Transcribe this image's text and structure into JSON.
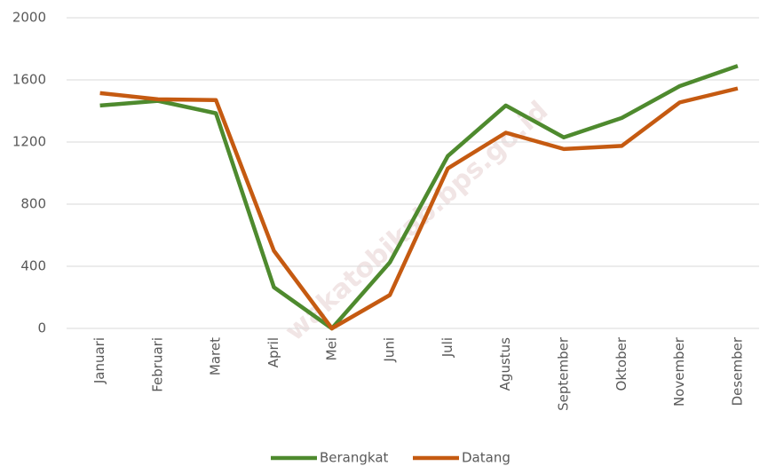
{
  "chart_data": {
    "type": "line",
    "categories": [
      "Januari",
      "Februari",
      "Maret",
      "April",
      "Mei",
      "Juni",
      "Juli",
      "Agustus",
      "September",
      "Oktober",
      "November",
      "Desember"
    ],
    "series": [
      {
        "name": "Berangkat",
        "color": "#4e8a2e",
        "values": [
          1435,
          1465,
          1385,
          265,
          0,
          425,
          1110,
          1435,
          1230,
          1355,
          1560,
          1690
        ]
      },
      {
        "name": "Datang",
        "color": "#c55a11",
        "values": [
          1515,
          1475,
          1470,
          500,
          0,
          215,
          1030,
          1260,
          1155,
          1175,
          1455,
          1545
        ]
      }
    ],
    "ylim": [
      0,
      2000
    ],
    "yticks": [
      0,
      400,
      800,
      1200,
      1600,
      2000
    ],
    "grid": true,
    "legend": "bottom",
    "watermark": "wakatobikab.bps.go.id"
  }
}
